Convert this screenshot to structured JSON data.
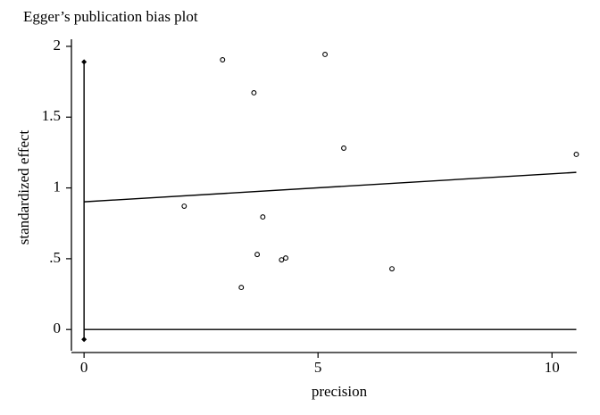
{
  "chart_data": {
    "type": "scatter",
    "title": "Egger’s publication bias plot",
    "xlabel": "precision",
    "ylabel": "standardized effect",
    "points": {
      "x": [
        2.96,
        5.15,
        3.63,
        5.55,
        10.52,
        2.14,
        3.82,
        3.7,
        4.22,
        4.31,
        6.58,
        3.36
      ],
      "values": [
        1.905,
        1.943,
        1.672,
        1.281,
        1.237,
        0.871,
        0.795,
        0.53,
        0.492,
        0.505,
        0.429,
        0.297
      ]
    },
    "fit": {
      "x": [
        0,
        10.52
      ],
      "values": [
        0.902,
        1.11
      ]
    },
    "reference": {
      "x": [
        0,
        10.52
      ],
      "values": [
        0,
        0
      ]
    },
    "interval": {
      "x": 0,
      "low": -0.07,
      "high": 1.89
    },
    "color": "#000000",
    "xlim": [
      -0.27,
      10.53
    ],
    "ylim": [
      -0.15,
      2.05
    ],
    "xticks": [
      0,
      5,
      10
    ],
    "yticks": [
      0,
      {
        "value": 0.5,
        "label": ".5"
      },
      1,
      1.5,
      2
    ]
  }
}
